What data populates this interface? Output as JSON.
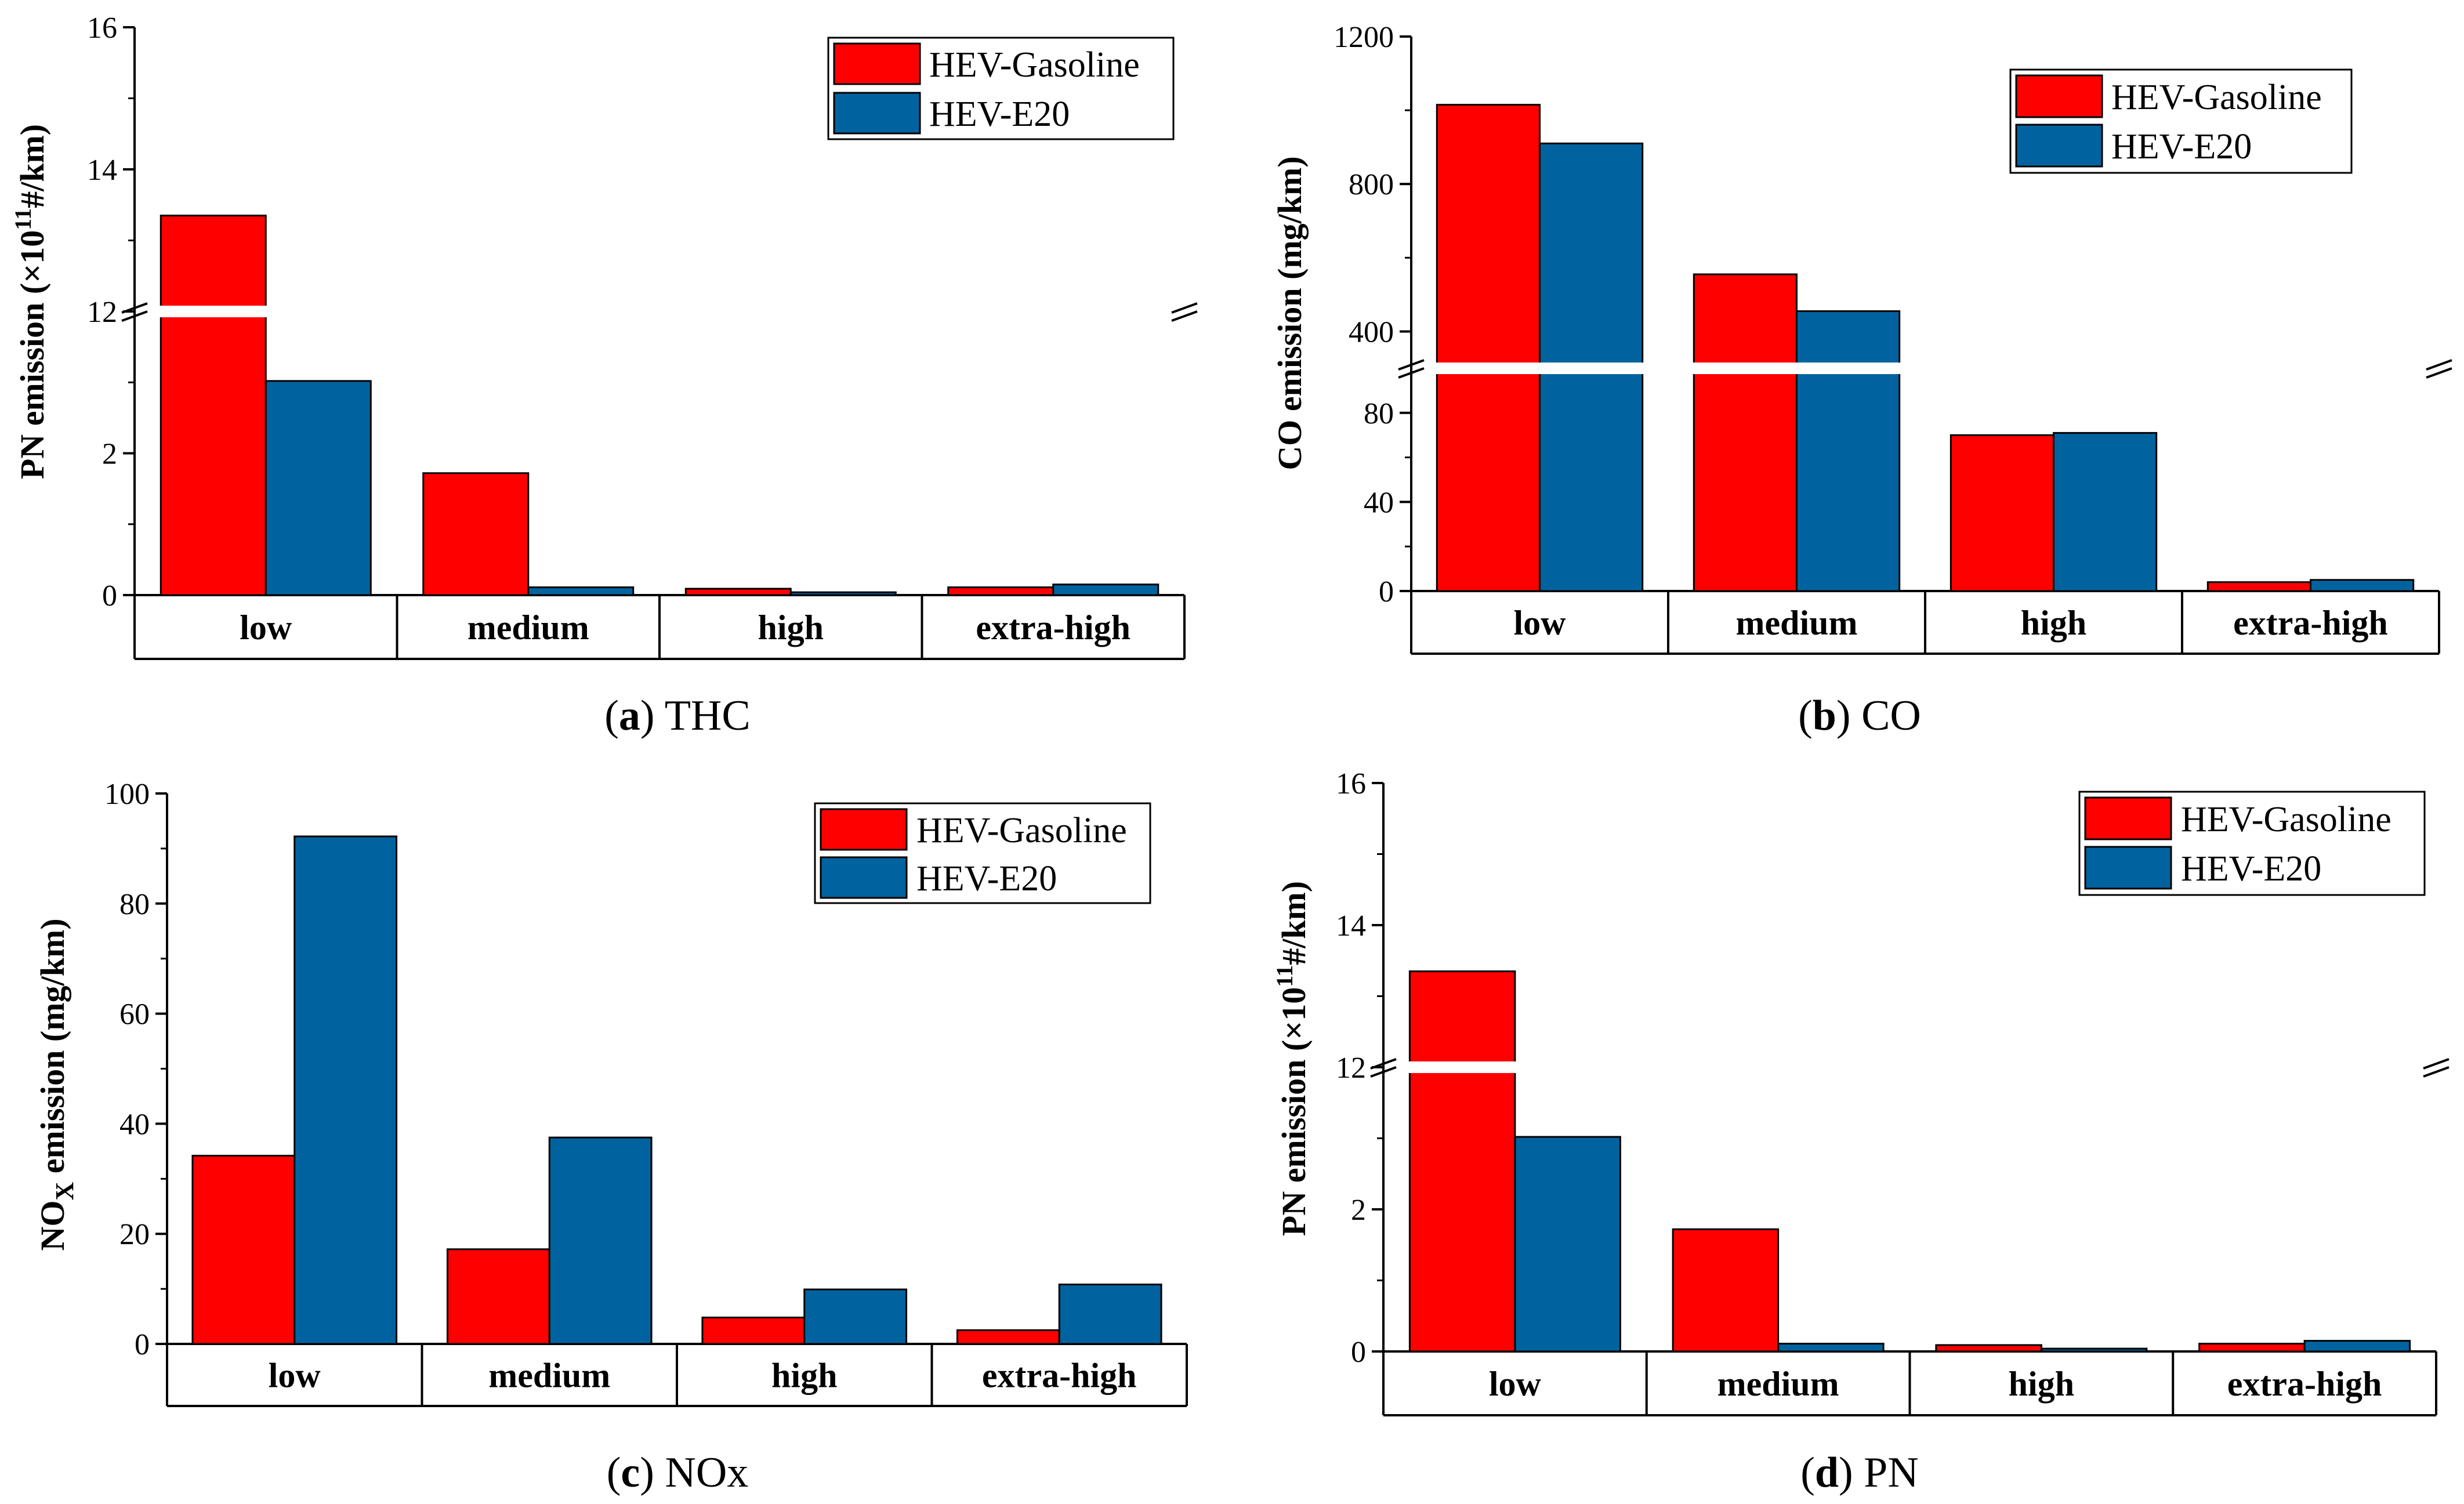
{
  "colors": {
    "gasoline": "#ff0000",
    "e20": "#00639f",
    "axis": "#000000",
    "background": "#ffffff"
  },
  "legend": {
    "series_gasoline": "HEV-Gasoline",
    "series_e20": "HEV-E20"
  },
  "captions": {
    "a": {
      "letter": "a",
      "text": "THC"
    },
    "b": {
      "letter": "b",
      "text": "CO"
    },
    "c": {
      "letter": "c",
      "text": "NOx"
    },
    "d": {
      "letter": "d",
      "text": "PN"
    }
  },
  "chart_data": [
    {
      "id": "a",
      "type": "bar",
      "title": "(a) THC",
      "ylabel": "PN emission (×10^11 #/km)",
      "ylabel_parts": {
        "pre": "PN emission (×10",
        "sup": "11",
        "post": "#/km)"
      },
      "categories": [
        "low",
        "medium",
        "high",
        "extra-high"
      ],
      "series": [
        {
          "name": "HEV-Gasoline",
          "values": [
            13.35,
            1.72,
            0.09,
            0.11
          ]
        },
        {
          "name": "HEV-E20",
          "values": [
            3.02,
            0.11,
            0.04,
            0.15
          ]
        }
      ],
      "axis_break": {
        "lower": [
          0,
          4
        ],
        "upper": [
          12,
          16
        ]
      },
      "yticks_lower": [
        "0",
        "2"
      ],
      "yticks_upper": [
        "12",
        "14",
        "16"
      ],
      "legend_position": "top-right"
    },
    {
      "id": "b",
      "type": "bar",
      "title": "(b) CO",
      "ylabel": "CO emission (mg/km)",
      "categories": [
        "low",
        "medium",
        "high",
        "extra-high"
      ],
      "series": [
        {
          "name": "HEV-Gasoline",
          "values": [
            1015,
            555,
            70,
            4
          ]
        },
        {
          "name": "HEV-E20",
          "values": [
            910,
            455,
            71,
            5
          ]
        }
      ],
      "axis_break": {
        "lower": [
          0,
          100
        ],
        "upper": [
          300,
          1200
        ]
      },
      "yticks_lower": [
        "0",
        "40",
        "80"
      ],
      "yticks_upper": [
        "400",
        "800",
        "1200"
      ],
      "legend_position": "top-right"
    },
    {
      "id": "c",
      "type": "bar",
      "title": "(c) NOx",
      "ylabel": "NOX emission (mg/km)",
      "ylabel_parts": {
        "pre": "NO",
        "sub": "X",
        "post": " emission (mg/km)"
      },
      "categories": [
        "low",
        "medium",
        "high",
        "extra-high"
      ],
      "series": [
        {
          "name": "HEV-Gasoline",
          "values": [
            34.2,
            17.2,
            4.8,
            2.5
          ]
        },
        {
          "name": "HEV-E20",
          "values": [
            92.2,
            37.5,
            9.9,
            10.8
          ]
        }
      ],
      "ylim": [
        0,
        100
      ],
      "yticks": [
        "0",
        "20",
        "40",
        "60",
        "80",
        "100"
      ],
      "legend_position": "top-right"
    },
    {
      "id": "d",
      "type": "bar",
      "title": "(d) PN",
      "ylabel": "PN emission (×10^11 #/km)",
      "ylabel_parts": {
        "pre": "PN emission (×10",
        "sup": "11",
        "post": "#/km)"
      },
      "categories": [
        "low",
        "medium",
        "high",
        "extra-high"
      ],
      "series": [
        {
          "name": "HEV-Gasoline",
          "values": [
            13.35,
            1.72,
            0.09,
            0.11
          ]
        },
        {
          "name": "HEV-E20",
          "values": [
            3.02,
            0.11,
            0.04,
            0.15
          ]
        }
      ],
      "axis_break": {
        "lower": [
          0,
          4
        ],
        "upper": [
          12,
          16
        ]
      },
      "yticks_lower": [
        "0",
        "2"
      ],
      "yticks_upper": [
        "12",
        "14",
        "16"
      ],
      "legend_position": "top-right"
    }
  ]
}
